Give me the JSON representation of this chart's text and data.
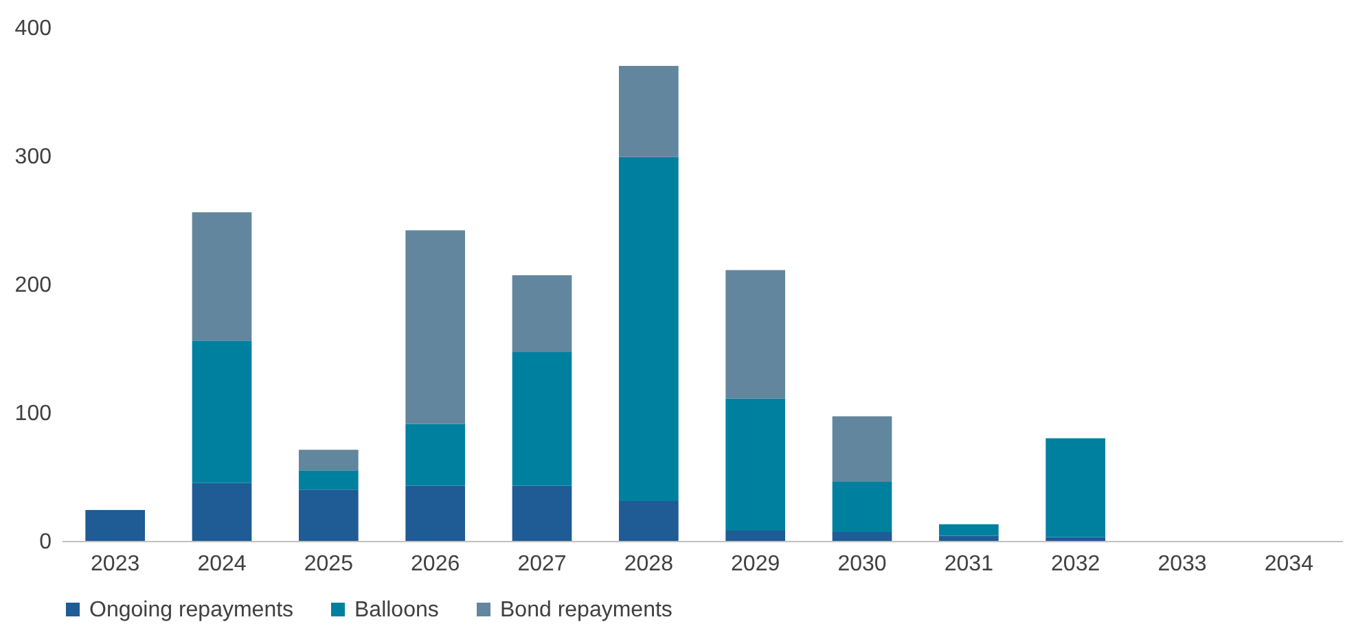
{
  "chart_data": {
    "type": "bar",
    "stacked": true,
    "categories": [
      "2023",
      "2024",
      "2025",
      "2026",
      "2027",
      "2028",
      "2029",
      "2030",
      "2031",
      "2032",
      "2033",
      "2034"
    ],
    "series": [
      {
        "name": "Ongoing repayments",
        "color": "#1f5b94",
        "values": [
          24,
          45,
          40,
          43,
          43,
          31,
          8,
          7,
          4,
          3,
          0,
          0
        ]
      },
      {
        "name": "Balloons",
        "color": "#00809f",
        "values": [
          0,
          111,
          15,
          48,
          104,
          268,
          103,
          39,
          9,
          77,
          0,
          0
        ]
      },
      {
        "name": "Bond repayments",
        "color": "#62869e",
        "values": [
          0,
          100,
          16,
          151,
          60,
          71,
          100,
          51,
          0,
          0,
          0,
          0
        ]
      }
    ],
    "ylim": [
      0,
      400
    ],
    "yticks": [
      0,
      100,
      200,
      300,
      400
    ],
    "legend": "bottom"
  }
}
